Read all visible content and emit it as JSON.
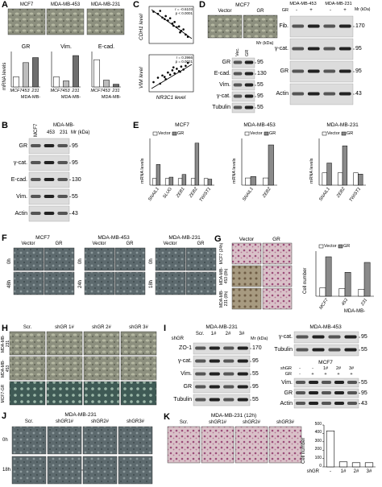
{
  "A": {
    "label": "A",
    "images": [
      "MCF7",
      "MDA-MB-453",
      "MDA-MB-231"
    ],
    "y_label": "mRNA levels",
    "group": "MDA-MB-",
    "colors": [
      "#ffffff",
      "#bdbdbd",
      "#6e6e6e"
    ],
    "charts": [
      {
        "title": "GR",
        "categories": [
          "MCF7",
          "453",
          "231"
        ],
        "values": [
          1,
          2.4,
          2.9
        ],
        "ylim": [
          0,
          3.5
        ]
      },
      {
        "title": "Vim.",
        "categories": [
          "MCF7",
          "453",
          "231"
        ],
        "values": [
          1,
          0.6,
          3.1
        ],
        "ylim": [
          0,
          3.5
        ]
      },
      {
        "title": "E-cad.",
        "categories": [
          "MCF7",
          "453",
          "231"
        ],
        "values": [
          1,
          0.25,
          0.1
        ],
        "ylim": [
          0,
          1.3
        ]
      }
    ]
  },
  "B": {
    "label": "B",
    "lanes": [
      "MCF7",
      "453",
      "231"
    ],
    "group": "MDA-MB-",
    "mr_header": "Mr (kDa)",
    "rows": [
      {
        "name": "GR",
        "mr": 95
      },
      {
        "name": "γ-cat.",
        "mr": 95
      },
      {
        "name": "E-cad.",
        "mr": 130
      },
      {
        "name": "Vim.",
        "mr": 55
      },
      {
        "name": "Actin",
        "mr": 43
      }
    ]
  },
  "C": {
    "label": "C",
    "x_label": "NR3C1 level",
    "plots": [
      {
        "y_label": "CDH1 level",
        "stats": [
          "r = -0.6103",
          "p < 0.0001"
        ],
        "x": [
          -1.6,
          -1.2,
          -1.0,
          -0.8,
          -0.5,
          -0.3,
          -0.1,
          0.1,
          0.3,
          0.5,
          0.7,
          0.9,
          1.1,
          1.3,
          1.5,
          0.2,
          -0.6,
          0.8
        ],
        "y": [
          1.8,
          1.5,
          1.9,
          1.0,
          1.2,
          0.6,
          0.9,
          0.2,
          0.4,
          -0.3,
          -0.2,
          -0.8,
          -0.6,
          -1.3,
          -1.6,
          -0.1,
          0.8,
          -1.0
        ],
        "xlim": [
          -2,
          2
        ],
        "ylim": [
          -2.5,
          2.5
        ]
      },
      {
        "y_label": "VIM level",
        "stats": [
          "r = 0.3966",
          "p = 0.0021"
        ],
        "x": [
          -1.6,
          -1.2,
          -1.0,
          -0.8,
          -0.5,
          -0.3,
          -0.1,
          0.1,
          0.3,
          0.5,
          0.7,
          0.9,
          1.1,
          1.3,
          1.5,
          0.2,
          -0.6,
          0.8
        ],
        "y": [
          -1.2,
          -0.6,
          -1.4,
          -0.3,
          -0.8,
          0.1,
          -0.2,
          0.4,
          0.0,
          0.6,
          0.3,
          0.9,
          0.5,
          1.0,
          1.4,
          0.8,
          -0.5,
          0.2
        ],
        "xlim": [
          -2,
          2
        ],
        "ylim": [
          -2.5,
          2.5
        ]
      }
    ]
  },
  "D": {
    "label": "D",
    "title": "MCF7",
    "images": [
      "Vector",
      "GR"
    ],
    "mr_header": "Mr (kDa)",
    "lanes": [
      "Vec.",
      "GR"
    ],
    "rows": [
      {
        "name": "GR",
        "mr": 95
      },
      {
        "name": "E-cad.",
        "mr": 130
      },
      {
        "name": "Vim.",
        "mr": 55
      },
      {
        "name": "γ-cat.",
        "mr": 95
      },
      {
        "name": "Tubulin",
        "mr": 55
      }
    ],
    "right": {
      "cells": [
        "MDA-MB-453",
        "MDA-MB-231"
      ],
      "treatment": "GR",
      "signs": [
        "-",
        "+",
        "-",
        "+"
      ],
      "mr_header": "Mr (kDa)",
      "rows": [
        {
          "name": "Fib.",
          "mr": 170
        },
        {
          "name": "γ-cat.",
          "mr": 95
        },
        {
          "name": "GR",
          "mr": 95
        },
        {
          "name": "Actin",
          "mr": 43
        }
      ]
    }
  },
  "E": {
    "label": "E",
    "y_label": "mRNA levels",
    "charts": [
      {
        "title": "MCF7",
        "categories": [
          "SNAIL1",
          "SLUG",
          "ZEB1",
          "ZEB2",
          "TWIST1"
        ],
        "series": [
          {
            "name": "Vector",
            "color": "#ffffff",
            "values": [
              1,
              1,
              1,
              1,
              1
            ]
          },
          {
            "name": "GR",
            "color": "#8a8a8a",
            "values": [
              3.1,
              1.2,
              1.6,
              6.3,
              0.9
            ]
          }
        ],
        "ylim": [
          0,
          7
        ]
      },
      {
        "title": "MDA-MB-453",
        "categories": [
          "SNAIL1",
          "ZEB2"
        ],
        "series": [
          {
            "name": "Vector",
            "color": "#ffffff",
            "values": [
              1,
              1
            ]
          },
          {
            "name": "GR",
            "color": "#8a8a8a",
            "values": [
              1.2,
              5.6
            ]
          }
        ],
        "ylim": [
          0,
          6.5
        ]
      },
      {
        "title": "MDA-MB-231",
        "categories": [
          "SNAIL1",
          "ZEB2",
          "TWIST1"
        ],
        "series": [
          {
            "name": "Vector",
            "color": "#ffffff",
            "values": [
              1,
              1,
              1
            ]
          },
          {
            "name": "GR",
            "color": "#8a8a8a",
            "values": [
              1.8,
              3.2,
              0.9
            ]
          }
        ],
        "ylim": [
          0,
          3.8
        ]
      }
    ]
  },
  "F": {
    "label": "F",
    "groups": [
      {
        "title": "MCF7",
        "columns": [
          "Vector",
          "GR"
        ],
        "rows": [
          "0h",
          "48h"
        ]
      },
      {
        "title": "MDA-MB-453",
        "columns": [
          "Vector",
          "GR"
        ],
        "rows": [
          "0h",
          "24h"
        ]
      },
      {
        "title": "MDA-MB-231",
        "columns": [
          "Vector",
          "GR"
        ],
        "rows": [
          "0h",
          "18h"
        ]
      }
    ]
  },
  "G": {
    "label": "G",
    "columns": [
      "Vector",
      "GR"
    ],
    "rows": [
      "MCF7 (24h)",
      "MDA-MB-453 (8h)",
      "MDA-MB-231 (8h)"
    ],
    "chart": {
      "y_label": "Cell number",
      "categories": [
        "MCF7",
        "453",
        "231"
      ],
      "group": "MDA-MB-",
      "series": [
        {
          "name": "Vector",
          "color": "#ffffff",
          "values": [
            60,
            55,
            50
          ]
        },
        {
          "name": "GR",
          "color": "#8a8a8a",
          "values": [
            280,
            170,
            240
          ]
        }
      ],
      "ylim": [
        0,
        320
      ]
    }
  },
  "H": {
    "label": "H",
    "columns": [
      "Scr.",
      "shGR 1#",
      "shGR 2#",
      "shGR 3#"
    ],
    "rows": [
      "MDA-MB-231",
      "MDA-MB-453",
      "MCF7-GR"
    ]
  },
  "I": {
    "label": "I",
    "left": {
      "title": "MDA-MB-231",
      "treatment": "shGR",
      "lanes": [
        "Scr.",
        "1#",
        "2#",
        "3#"
      ],
      "mr_header": "Mr (kDa)",
      "rows": [
        {
          "name": "ZO-1",
          "mr": 170
        },
        {
          "name": "γ-cat.",
          "mr": 95
        },
        {
          "name": "Vim.",
          "mr": 55
        },
        {
          "name": "GR",
          "mr": 95
        },
        {
          "name": "Tubulin",
          "mr": 55
        }
      ]
    },
    "right_top": {
      "title": "MDA-MB-453",
      "rows": [
        {
          "name": "γ-cat.",
          "mr": 95
        },
        {
          "name": "Tubulin",
          "mr": 55
        }
      ]
    },
    "right_bottom": {
      "title": "MCF7",
      "treatment": "shGR",
      "lanes": [
        "-",
        "-",
        "1#",
        "2#",
        "3#"
      ],
      "gr": "GR",
      "signs": [
        "-",
        "+",
        "+",
        "+",
        "+"
      ],
      "rows": [
        {
          "name": "Vim.",
          "mr": 55
        },
        {
          "name": "GR",
          "mr": 95
        },
        {
          "name": "Actin",
          "mr": 43
        }
      ]
    }
  },
  "J": {
    "label": "J",
    "title": "MDA-MB-231",
    "columns": [
      "Scr.",
      "shGR1#",
      "shGR2#",
      "shGR3#"
    ],
    "rows": [
      "0h",
      "18h"
    ]
  },
  "K": {
    "label": "K",
    "title": "MDA-MB-231 (12h)",
    "columns": [
      "Scr.",
      "shGR1#",
      "shGR2#",
      "shGR3#"
    ],
    "chart": {
      "y_label": "Cell number",
      "treatment": "shGR",
      "categories": [
        "-",
        "1#",
        "2#",
        "3#"
      ],
      "values": [
        430,
        60,
        50,
        50
      ],
      "ylim": [
        0,
        500
      ],
      "yticks": [
        0,
        100,
        200,
        300,
        400,
        500
      ],
      "color": "#ffffff"
    }
  }
}
